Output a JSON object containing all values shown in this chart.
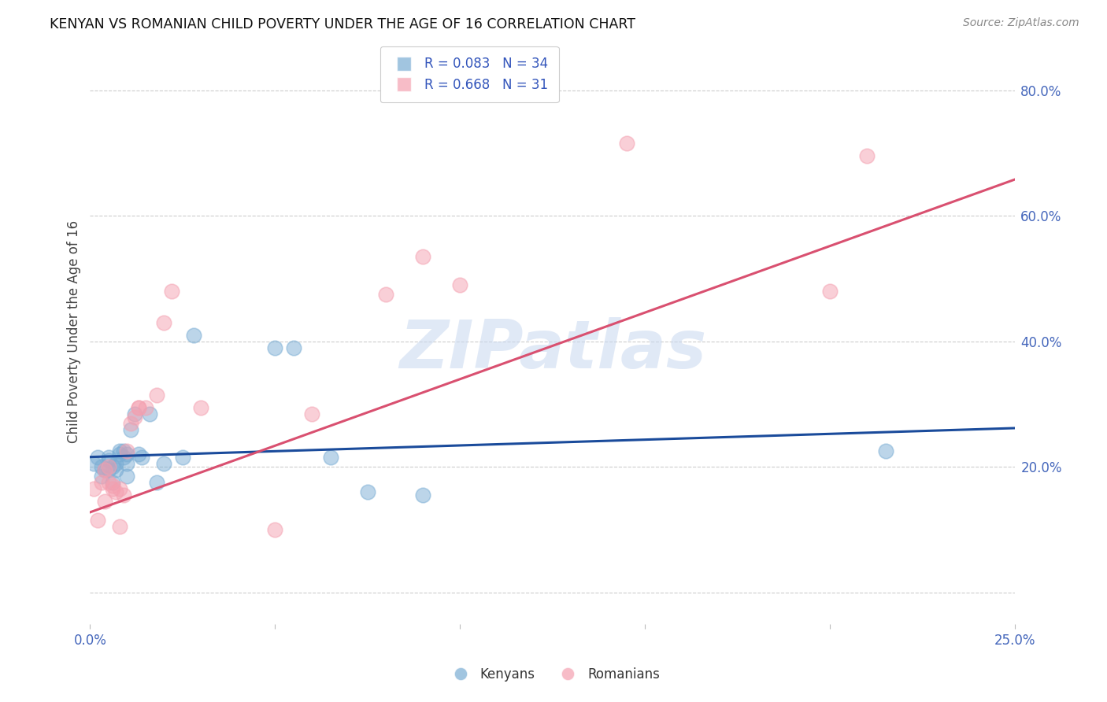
{
  "title": "KENYAN VS ROMANIAN CHILD POVERTY UNDER THE AGE OF 16 CORRELATION CHART",
  "source": "Source: ZipAtlas.com",
  "ylabel": "Child Poverty Under the Age of 16",
  "xlim": [
    0.0,
    0.25
  ],
  "ylim": [
    -0.05,
    0.88
  ],
  "xticks": [
    0.0,
    0.05,
    0.1,
    0.15,
    0.2,
    0.25
  ],
  "xtick_labels": [
    "0.0%",
    "",
    "",
    "",
    "",
    "25.0%"
  ],
  "yticks": [
    0.0,
    0.2,
    0.4,
    0.6,
    0.8
  ],
  "ytick_labels": [
    "",
    "20.0%",
    "40.0%",
    "60.0%",
    "80.0%"
  ],
  "kenyan_R": "0.083",
  "kenyan_N": "34",
  "romanian_R": "0.668",
  "romanian_N": "31",
  "kenyan_color": "#7AADD4",
  "romanian_color": "#F4A0B0",
  "kenyan_line_color": "#1A4B9B",
  "romanian_line_color": "#D95070",
  "watermark": "ZIPatlas",
  "kenyan_x": [
    0.001,
    0.002,
    0.003,
    0.003,
    0.004,
    0.005,
    0.005,
    0.005,
    0.006,
    0.006,
    0.007,
    0.007,
    0.008,
    0.008,
    0.009,
    0.009,
    0.01,
    0.01,
    0.01,
    0.011,
    0.012,
    0.013,
    0.014,
    0.016,
    0.018,
    0.02,
    0.025,
    0.028,
    0.05,
    0.055,
    0.065,
    0.075,
    0.09,
    0.215
  ],
  "kenyan_y": [
    0.205,
    0.215,
    0.2,
    0.185,
    0.195,
    0.195,
    0.21,
    0.215,
    0.2,
    0.175,
    0.205,
    0.195,
    0.22,
    0.225,
    0.225,
    0.215,
    0.185,
    0.205,
    0.22,
    0.26,
    0.285,
    0.22,
    0.215,
    0.285,
    0.175,
    0.205,
    0.215,
    0.41,
    0.39,
    0.39,
    0.215,
    0.16,
    0.155,
    0.225
  ],
  "romanian_x": [
    0.001,
    0.002,
    0.003,
    0.004,
    0.004,
    0.005,
    0.005,
    0.006,
    0.006,
    0.007,
    0.008,
    0.008,
    0.009,
    0.01,
    0.011,
    0.012,
    0.013,
    0.013,
    0.015,
    0.018,
    0.02,
    0.022,
    0.03,
    0.05,
    0.06,
    0.08,
    0.09,
    0.1,
    0.145,
    0.2,
    0.21
  ],
  "romanian_y": [
    0.165,
    0.115,
    0.175,
    0.195,
    0.145,
    0.2,
    0.175,
    0.17,
    0.165,
    0.16,
    0.165,
    0.105,
    0.155,
    0.225,
    0.27,
    0.28,
    0.295,
    0.295,
    0.295,
    0.315,
    0.43,
    0.48,
    0.295,
    0.1,
    0.285,
    0.475,
    0.535,
    0.49,
    0.715,
    0.48,
    0.695
  ],
  "kenyan_line_x0": 0.0,
  "kenyan_line_y0": 0.216,
  "kenyan_line_x1": 0.25,
  "kenyan_line_y1": 0.262,
  "romanian_line_x0": 0.0,
  "romanian_line_y0": 0.128,
  "romanian_line_x1": 0.25,
  "romanian_line_y1": 0.658
}
